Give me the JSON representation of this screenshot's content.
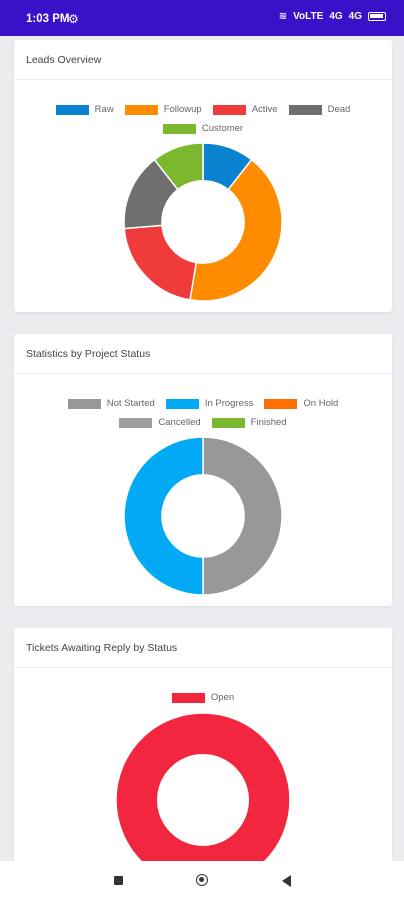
{
  "status_bar": {
    "time": "1:03 PM",
    "icons": [
      "settings-icon",
      "wifi-icon",
      "sim-icon",
      "signal-icon",
      "battery-icon"
    ],
    "indicators": [
      "VoLTE",
      "4G",
      "4G"
    ]
  },
  "cards": [
    {
      "title": "Leads Overview",
      "legend_rows": [
        [
          {
            "label": "Raw",
            "color": "#0a82d0"
          },
          {
            "label": "Followup",
            "color": "#ff8c00"
          },
          {
            "label": "Active",
            "color": "#f03b3b"
          },
          {
            "label": "Dead",
            "color": "#6f6f6f"
          }
        ],
        [
          {
            "label": "Customer",
            "color": "#7cb82f"
          }
        ]
      ]
    },
    {
      "title": "Statistics by Project Status",
      "legend_rows": [
        [
          {
            "label": "Not Started",
            "color": "#989898"
          },
          {
            "label": "In Progress",
            "color": "#03a9f4"
          },
          {
            "label": "On Hold",
            "color": "#ff6f00"
          }
        ],
        [
          {
            "label": "Cancelled",
            "color": "#9e9e9e"
          },
          {
            "label": "Finished",
            "color": "#7cb82f"
          }
        ]
      ]
    },
    {
      "title": "Tickets Awaiting Reply by Status",
      "legend_rows": [
        [
          {
            "label": "Open",
            "color": "#f3263f"
          }
        ]
      ]
    }
  ],
  "chart_data": [
    {
      "type": "pie",
      "title": "Leads Overview",
      "categories": [
        "Raw",
        "Followup",
        "Active",
        "Dead",
        "Customer"
      ],
      "values": [
        1,
        4,
        2,
        1.5,
        1
      ],
      "colors": [
        "#0a82d0",
        "#ff8c00",
        "#f03b3b",
        "#6f6f6f",
        "#7cb82f"
      ]
    },
    {
      "type": "pie",
      "title": "Statistics by Project Status",
      "categories": [
        "Not Started",
        "In Progress",
        "On Hold",
        "Cancelled",
        "Finished"
      ],
      "values": [
        1,
        1,
        0,
        0,
        0
      ],
      "colors": [
        "#989898",
        "#03a9f4",
        "#ff6f00",
        "#9e9e9e",
        "#7cb82f"
      ]
    },
    {
      "type": "pie",
      "title": "Tickets Awaiting Reply by Status",
      "categories": [
        "Open"
      ],
      "values": [
        1
      ],
      "colors": [
        "#f3263f"
      ]
    }
  ],
  "nav_bar": {
    "buttons": [
      "recents-button",
      "home-button",
      "back-button"
    ]
  }
}
